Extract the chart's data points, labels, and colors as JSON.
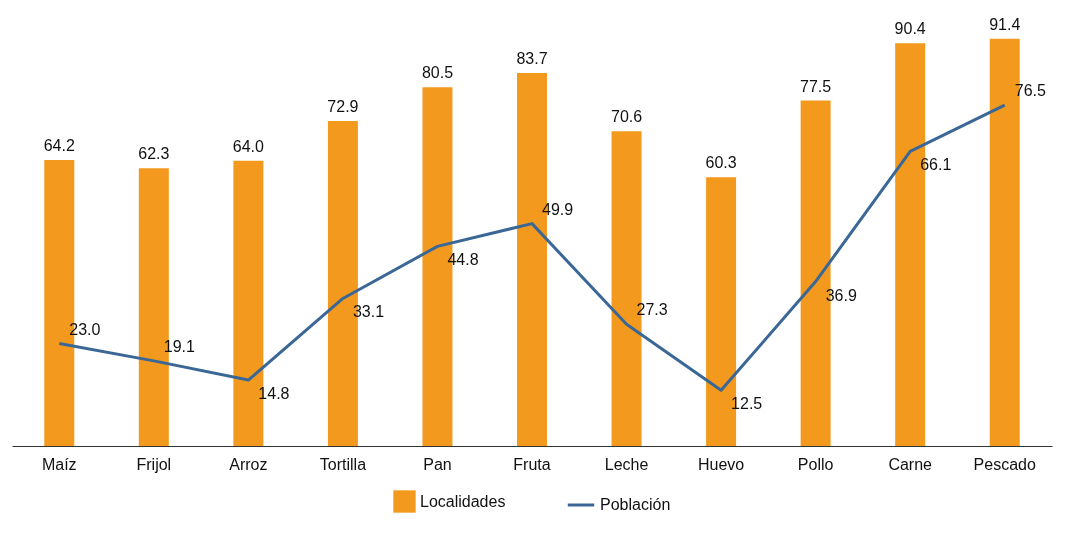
{
  "chart_data": {
    "type": "bar",
    "categories": [
      "Maíz",
      "Frijol",
      "Arroz",
      "Tortilla",
      "Pan",
      "Fruta",
      "Leche",
      "Huevo",
      "Pollo",
      "Carne",
      "Pescado"
    ],
    "series": [
      {
        "name": "Localidades",
        "color": "#f39a1e",
        "values": [
          64.2,
          62.3,
          64.0,
          72.9,
          80.5,
          83.7,
          70.6,
          60.3,
          77.5,
          90.4,
          91.4
        ],
        "value_labels": [
          "64.2",
          "62.3",
          "64.0",
          "72.9",
          "80.5",
          "83.7",
          "70.6",
          "60.3",
          "77.5",
          "90.4",
          "91.4"
        ]
      },
      {
        "name": "Población",
        "type": "line",
        "color": "#3b6796",
        "values": [
          23.0,
          19.1,
          14.8,
          33.1,
          44.8,
          49.9,
          27.3,
          12.5,
          36.9,
          66.1,
          76.5
        ],
        "value_labels": [
          "23.0",
          "19.1",
          "14.8",
          "33.1",
          "44.8",
          "49.9",
          "27.3",
          "12.5",
          "36.9",
          "66.1",
          "76.5"
        ]
      }
    ],
    "ylim": [
      0,
      92
    ],
    "legend": "bottom",
    "tick_labels": "x",
    "grid": false,
    "marker": "none",
    "line_style": "solid"
  }
}
